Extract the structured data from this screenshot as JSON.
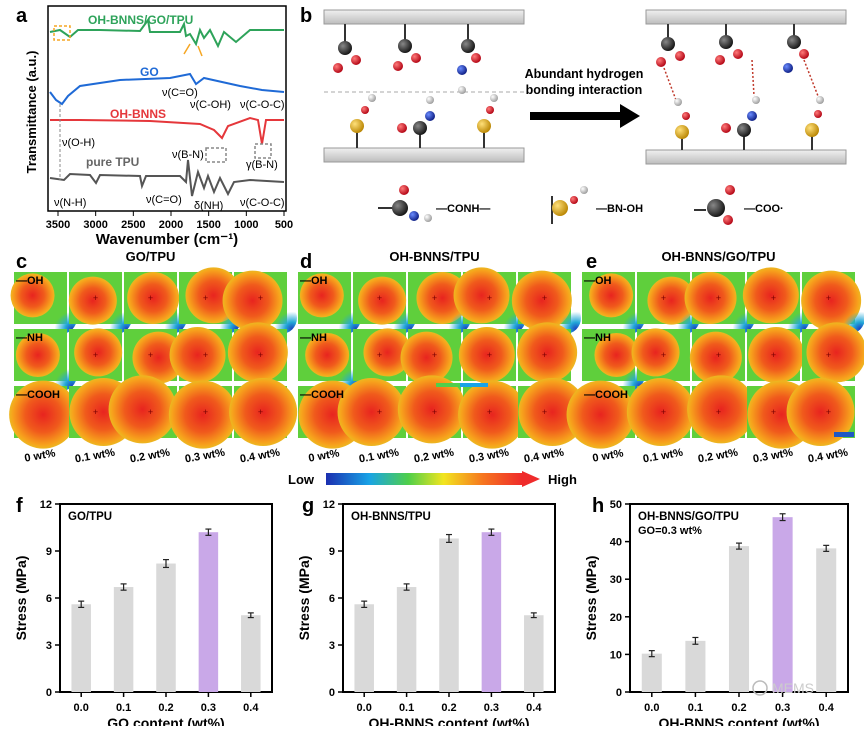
{
  "panel_labels": {
    "a": "a",
    "b": "b",
    "c": "c",
    "d": "d",
    "e": "e",
    "f": "f",
    "g": "g",
    "h": "h"
  },
  "ftir": {
    "ylabel": "Transmittance (a.u.)",
    "xlabel": "Wavenumber (cm⁻¹)",
    "xticks": [
      "3500",
      "3000",
      "2500",
      "2000",
      "1500",
      "1000",
      "500"
    ],
    "traces": [
      {
        "name": "OH-BNNS/GO/TPU",
        "color": "#2ea35a"
      },
      {
        "name": "GO",
        "color": "#1f6ad6"
      },
      {
        "name": "OH-BNNS",
        "color": "#e5373b"
      },
      {
        "name": "pure TPU",
        "color": "#666666"
      }
    ],
    "annotations": {
      "v_co_go": "ν(C=O)",
      "v_coh": "ν(C-OH)",
      "v_coc_go": "ν(C-O-C)",
      "v_oh": "ν(O-H)",
      "v_bn": "ν(B-N)",
      "g_bn": "γ(B-N)",
      "v_nh": "ν(N-H)",
      "v_co_tpu": "ν(C=O)",
      "d_nh": "δ(NH)",
      "v_coc_tpu": "ν(C-O-C)"
    }
  },
  "schematic": {
    "arrow_text_1": "Abundant hydrogen",
    "arrow_text_2": "bonding interaction",
    "legend": [
      "—CONH—",
      "—BN-OH",
      "—COO·"
    ]
  },
  "maps": {
    "titles": [
      "GO/TPU",
      "OH-BNNS/TPU",
      "OH-BNNS/GO/TPU"
    ],
    "row_labels": [
      "—OH",
      "—NH",
      "—COOH"
    ],
    "col_labels": [
      "0 wt%",
      "0.1 wt%",
      "0.2 wt%",
      "0.3 wt%",
      "0.4 wt%"
    ],
    "scale_low": "Low",
    "scale_high": "High"
  },
  "watermark": "MEMS",
  "chart_data": [
    {
      "type": "bar",
      "title": "GO/TPU",
      "categories": [
        "0.0",
        "0.1",
        "0.2",
        "0.3",
        "0.4"
      ],
      "values": [
        5.6,
        6.7,
        8.2,
        10.2,
        4.9
      ],
      "errors": [
        0.2,
        0.2,
        0.25,
        0.2,
        0.15
      ],
      "highlight_index": 3,
      "xlabel": "GO content (wt%)",
      "ylabel": "Stress (MPa)",
      "ylim": [
        0,
        12
      ],
      "yticks": [
        "0",
        "3",
        "6",
        "9",
        "12"
      ],
      "colors": {
        "bar": "#d9d9d9",
        "highlight": "#c9a8e8"
      }
    },
    {
      "type": "bar",
      "title": "OH-BNNS/TPU",
      "categories": [
        "0.0",
        "0.1",
        "0.2",
        "0.3",
        "0.4"
      ],
      "values": [
        5.6,
        6.7,
        9.8,
        10.2,
        4.9
      ],
      "errors": [
        0.2,
        0.2,
        0.25,
        0.2,
        0.15
      ],
      "highlight_index": 3,
      "xlabel": "OH-BNNS content (wt%)",
      "ylabel": "Stress (MPa)",
      "ylim": [
        0,
        12
      ],
      "yticks": [
        "0",
        "3",
        "6",
        "9",
        "12"
      ],
      "colors": {
        "bar": "#d9d9d9",
        "highlight": "#c9a8e8"
      }
    },
    {
      "type": "bar",
      "title": "OH-BNNS/GO/TPU",
      "subtitle": "GO=0.3 wt%",
      "categories": [
        "0.0",
        "0.1",
        "0.2",
        "0.3",
        "0.4"
      ],
      "values": [
        10.2,
        13.6,
        38.8,
        46.5,
        38.2
      ],
      "errors": [
        0.8,
        0.9,
        0.8,
        0.9,
        0.8
      ],
      "highlight_index": 3,
      "xlabel": "OH-BNNS content (wt%)",
      "ylabel": "Stress (MPa)",
      "ylim": [
        0,
        50
      ],
      "yticks": [
        "0",
        "10",
        "20",
        "30",
        "40",
        "50"
      ],
      "colors": {
        "bar": "#d9d9d9",
        "highlight": "#c9a8e8"
      }
    }
  ]
}
